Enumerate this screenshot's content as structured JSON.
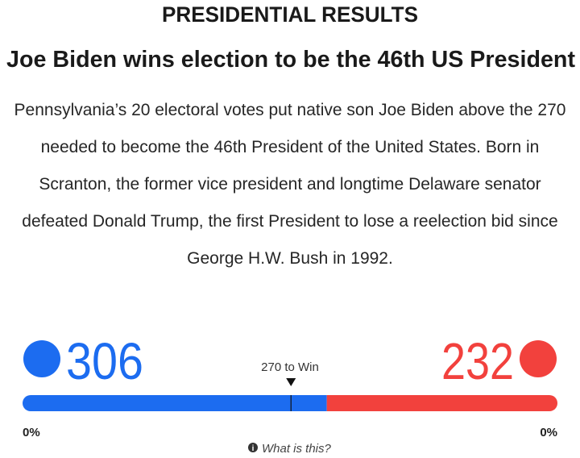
{
  "header": {
    "kicker": "PRESIDENTIAL RESULTS",
    "title": "Joe Biden wins election to be the 46th US President"
  },
  "body": {
    "paragraph": "Pennsylvania’s 20 electoral votes put native son Joe Biden above the 270 needed to become the 46th President of the United States. Born in Scranton, the former vice president and longtime Delaware senator defeated Donald Trump, the first President to lose a reelection bid since George H.W. Bush in 1992."
  },
  "results": {
    "left": {
      "value": 306,
      "color": "#1c6cf0",
      "percent_label": "0%"
    },
    "right": {
      "value": 232,
      "color": "#f2413d",
      "percent_label": "0%"
    },
    "threshold": {
      "value": 270,
      "label": "270 to Win"
    },
    "info": "What is this?"
  }
}
